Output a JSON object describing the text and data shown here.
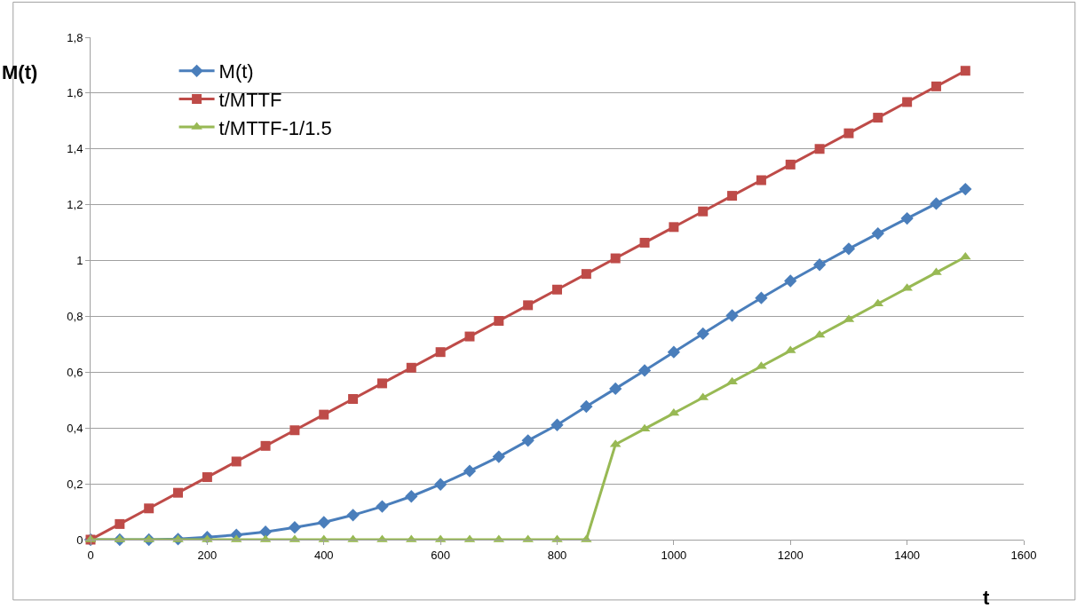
{
  "chart_data": {
    "type": "line",
    "ylabel": "M(t)",
    "xlabel": "t",
    "x": [
      0,
      50,
      100,
      150,
      200,
      250,
      300,
      350,
      400,
      450,
      500,
      550,
      600,
      650,
      700,
      750,
      800,
      850,
      900,
      950,
      1000,
      1050,
      1100,
      1150,
      1200,
      1250,
      1300,
      1350,
      1400,
      1450,
      1500
    ],
    "series": [
      {
        "name": "M(t)",
        "color": "#4a7ebb",
        "marker": "diamond",
        "values": [
          0,
          0,
          0,
          0.002,
          0.009,
          0.017,
          0.028,
          0.044,
          0.062,
          0.088,
          0.119,
          0.155,
          0.198,
          0.246,
          0.297,
          0.355,
          0.411,
          0.477,
          0.541,
          0.606,
          0.672,
          0.738,
          0.803,
          0.866,
          0.927,
          0.985,
          1.042,
          1.097,
          1.151,
          1.204,
          1.256
        ]
      },
      {
        "name": "t/MTTF",
        "color": "#be4b48",
        "marker": "square",
        "values": [
          0,
          0.056,
          0.112,
          0.168,
          0.224,
          0.28,
          0.336,
          0.392,
          0.448,
          0.504,
          0.56,
          0.616,
          0.672,
          0.728,
          0.784,
          0.84,
          0.896,
          0.952,
          1.008,
          1.064,
          1.12,
          1.176,
          1.232,
          1.288,
          1.344,
          1.4,
          1.456,
          1.512,
          1.568,
          1.624,
          1.68
        ]
      },
      {
        "name": "t/MTTF-1/1.5",
        "color": "#98b954",
        "marker": "triangle",
        "values": [
          0,
          0,
          0,
          0,
          0,
          0,
          0,
          0,
          0,
          0,
          0,
          0,
          0,
          0,
          0,
          0,
          0,
          0,
          0.341,
          0.397,
          0.453,
          0.509,
          0.565,
          0.621,
          0.677,
          0.733,
          0.789,
          0.845,
          0.901,
          0.957,
          1.013
        ]
      }
    ],
    "xlim": [
      0,
      1600
    ],
    "xticks": [
      0,
      200,
      400,
      600,
      800,
      1000,
      1200,
      1400,
      1600
    ],
    "ylim": [
      0,
      1.8
    ],
    "yticks": [
      0,
      {
        "value": 0.2,
        "label": "0,2"
      },
      {
        "value": 0.4,
        "label": "0,4"
      },
      {
        "value": 0.6,
        "label": "0,6"
      },
      {
        "value": 0.8,
        "label": "0,8"
      },
      1,
      {
        "value": 1.2,
        "label": "1,2"
      },
      {
        "value": 1.4,
        "label": "1,4"
      },
      {
        "value": 1.6,
        "label": "1,6"
      },
      {
        "value": 1.8,
        "label": "1,8"
      }
    ],
    "grid": "y",
    "legend": "top left",
    "line_style": "solid"
  }
}
